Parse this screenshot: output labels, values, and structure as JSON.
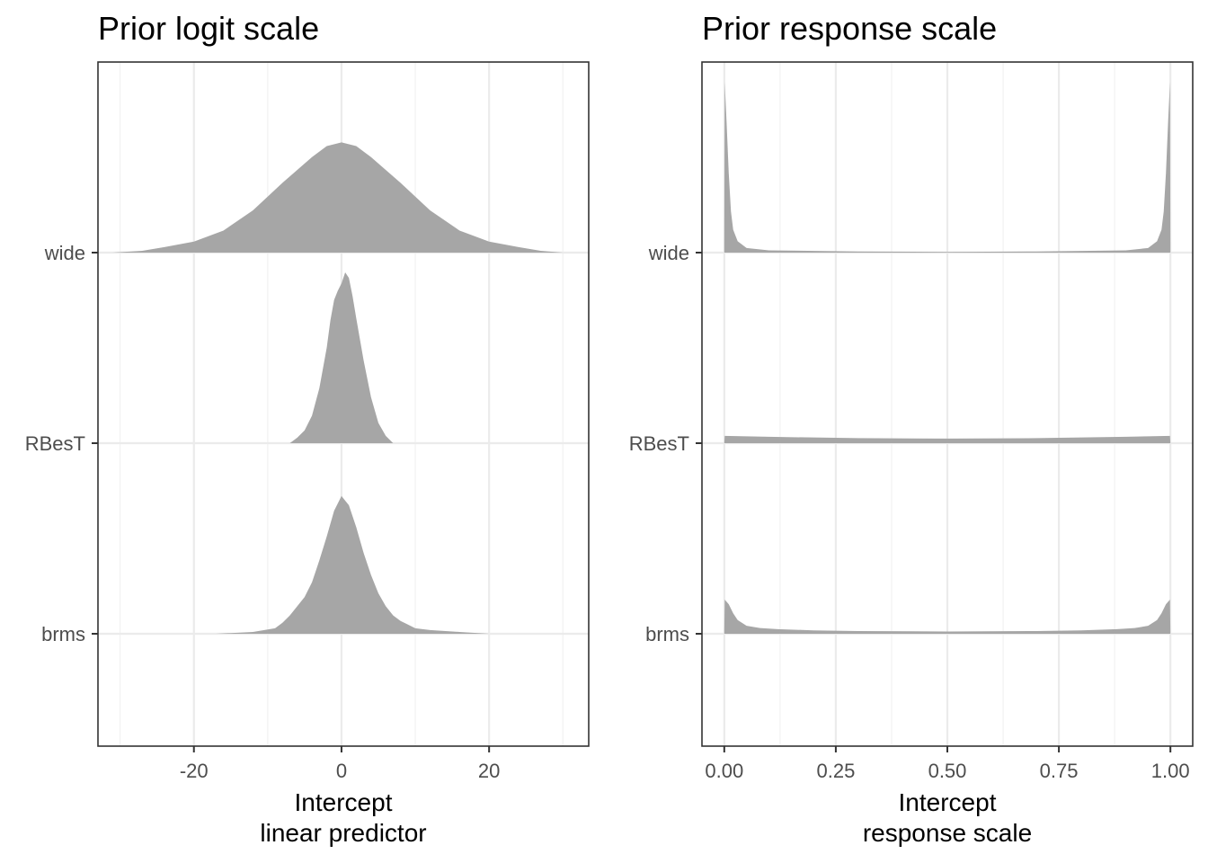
{
  "chart_data": [
    {
      "type": "area",
      "title": "Prior logit scale",
      "xlabel": [
        "Intercept",
        "linear predictor"
      ],
      "ylabel": "",
      "xlim": [
        -33,
        33.5
      ],
      "x_ticks": [
        -20,
        0,
        20
      ],
      "x_tick_labels": [
        "-20",
        "0",
        "20"
      ],
      "categories": [
        "wide",
        "RBesT",
        "brms"
      ],
      "grid": true,
      "legend": "none",
      "fill_color": "#a6a6a6",
      "series": [
        {
          "name": "wide",
          "x": [
            -31,
            -27,
            -24,
            -20,
            -16,
            -12,
            -8,
            -4,
            -2,
            0,
            2,
            4,
            8,
            12,
            16,
            20,
            24,
            27,
            30
          ],
          "y": [
            0.0,
            0.01,
            0.03,
            0.06,
            0.12,
            0.23,
            0.38,
            0.52,
            0.58,
            0.6,
            0.58,
            0.52,
            0.38,
            0.23,
            0.12,
            0.06,
            0.03,
            0.01,
            0.0
          ]
        },
        {
          "name": "RBesT",
          "x": [
            -7,
            -6,
            -5,
            -4,
            -3,
            -2,
            -1.5,
            -1,
            -0.5,
            0,
            0.5,
            1,
            1.5,
            2,
            3,
            4,
            5,
            6,
            7
          ],
          "y": [
            0.0,
            0.03,
            0.07,
            0.15,
            0.3,
            0.52,
            0.67,
            0.78,
            0.83,
            0.87,
            0.93,
            0.9,
            0.8,
            0.68,
            0.45,
            0.25,
            0.11,
            0.04,
            0.0
          ]
        },
        {
          "name": "brms",
          "x": [
            -17,
            -12,
            -9,
            -8,
            -7,
            -6,
            -5,
            -4,
            -3,
            -2,
            -1,
            0,
            1,
            2,
            3,
            4,
            5,
            6,
            7,
            8,
            9,
            10,
            12,
            16,
            20
          ],
          "y": [
            0.0,
            0.01,
            0.03,
            0.06,
            0.1,
            0.15,
            0.2,
            0.28,
            0.4,
            0.53,
            0.67,
            0.75,
            0.7,
            0.58,
            0.44,
            0.32,
            0.22,
            0.15,
            0.1,
            0.07,
            0.05,
            0.03,
            0.02,
            0.01,
            0.0
          ]
        }
      ]
    },
    {
      "type": "area",
      "title": "Prior response scale",
      "xlabel": [
        "Intercept",
        "response scale"
      ],
      "ylabel": "",
      "xlim": [
        -0.05,
        1.05
      ],
      "x_ticks": [
        0,
        0.25,
        0.5,
        0.75,
        1.0
      ],
      "x_tick_labels": [
        "0.00",
        "0.25",
        "0.50",
        "0.75",
        "1.00"
      ],
      "categories": [
        "wide",
        "RBesT",
        "brms"
      ],
      "grid": true,
      "legend": "none",
      "fill_color": "#a6a6a6",
      "series": [
        {
          "name": "wide",
          "x": [
            0.0,
            0.001,
            0.005,
            0.01,
            0.015,
            0.02,
            0.03,
            0.05,
            0.1,
            0.3,
            0.5,
            0.7,
            0.9,
            0.95,
            0.97,
            0.98,
            0.985,
            0.99,
            0.995,
            0.999,
            1.0
          ],
          "y": [
            0.0,
            0.75,
            0.58,
            0.35,
            0.18,
            0.1,
            0.05,
            0.02,
            0.01,
            0.005,
            0.003,
            0.005,
            0.01,
            0.02,
            0.05,
            0.1,
            0.18,
            0.35,
            0.58,
            0.75,
            0.0
          ]
        },
        {
          "name": "RBesT",
          "x": [
            0.0,
            0.001,
            0.1,
            0.3,
            0.5,
            0.7,
            0.9,
            0.999,
            1.0
          ],
          "y": [
            0.0,
            0.032,
            0.028,
            0.022,
            0.02,
            0.022,
            0.028,
            0.032,
            0.0
          ]
        },
        {
          "name": "brms",
          "x": [
            0.0,
            0.001,
            0.01,
            0.02,
            0.03,
            0.05,
            0.08,
            0.12,
            0.2,
            0.3,
            0.5,
            0.7,
            0.8,
            0.88,
            0.92,
            0.95,
            0.97,
            0.98,
            0.99,
            0.999,
            1.0
          ],
          "y": [
            0.0,
            0.15,
            0.13,
            0.09,
            0.06,
            0.035,
            0.025,
            0.02,
            0.015,
            0.012,
            0.01,
            0.012,
            0.015,
            0.02,
            0.025,
            0.035,
            0.06,
            0.09,
            0.13,
            0.15,
            0.0
          ]
        }
      ]
    }
  ]
}
